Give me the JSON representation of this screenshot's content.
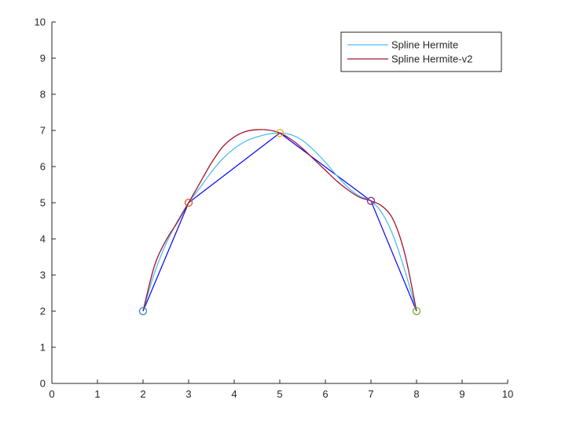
{
  "chart_data": {
    "type": "line",
    "title": "",
    "xlabel": "",
    "ylabel": "",
    "xlim": [
      0,
      10
    ],
    "ylim": [
      0,
      10
    ],
    "xticks": [
      0,
      1,
      2,
      3,
      4,
      5,
      6,
      7,
      8,
      9,
      10
    ],
    "yticks": [
      0,
      1,
      2,
      3,
      4,
      5,
      6,
      7,
      8,
      9,
      10
    ],
    "grid": false,
    "legend_position": "top-right",
    "control_points": {
      "x": [
        2,
        3,
        5,
        7,
        8
      ],
      "y": [
        2,
        5,
        6.93,
        5.05,
        2
      ],
      "marker_colors": [
        "#1f8fd0",
        "#d9541a",
        "#edb120",
        "#7e2f8e",
        "#77ac30"
      ],
      "polyline_color": "#0000ff"
    },
    "series": [
      {
        "name": "Spline Hermite",
        "color": "#4dbeee",
        "x": [
          2,
          2.25,
          2.5,
          2.75,
          3,
          3.25,
          3.5,
          3.75,
          4,
          4.25,
          4.5,
          4.75,
          5,
          5.25,
          5.5,
          5.75,
          6,
          6.25,
          6.5,
          6.75,
          7,
          7.25,
          7.5,
          7.75,
          8
        ],
        "y": [
          2,
          3.05,
          3.85,
          4.48,
          5,
          5.42,
          5.85,
          6.22,
          6.5,
          6.7,
          6.82,
          6.9,
          6.93,
          6.88,
          6.72,
          6.45,
          6.12,
          5.75,
          5.42,
          5.18,
          5.05,
          4.7,
          4.05,
          3.1,
          2
        ]
      },
      {
        "name": "Spline Hermite-v2",
        "color": "#a2142f",
        "x": [
          2,
          2.25,
          2.5,
          2.75,
          3,
          3.25,
          3.5,
          3.75,
          4,
          4.25,
          4.5,
          4.75,
          5,
          5.25,
          5.5,
          5.75,
          6,
          6.25,
          6.5,
          6.75,
          7,
          7.25,
          7.5,
          7.75,
          8
        ],
        "y": [
          2,
          3.25,
          3.95,
          4.45,
          5,
          5.55,
          6.1,
          6.55,
          6.82,
          6.97,
          7.02,
          7.01,
          6.93,
          6.75,
          6.5,
          6.2,
          5.9,
          5.6,
          5.35,
          5.15,
          5.05,
          4.9,
          4.5,
          3.55,
          2
        ]
      }
    ]
  }
}
